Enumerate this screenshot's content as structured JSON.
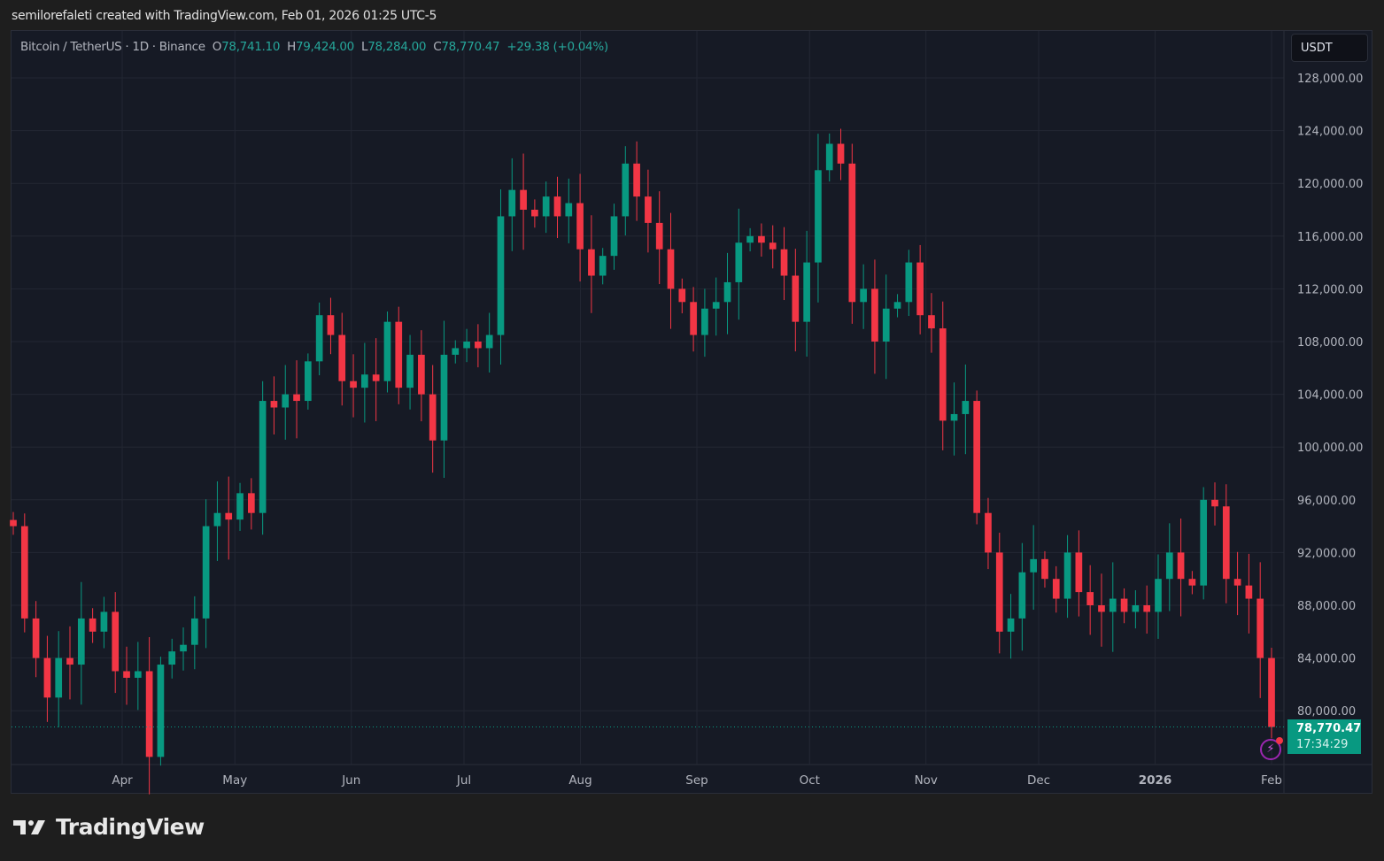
{
  "credit": "semilorefaleti created with TradingView.com, Feb 01, 2026 01:25 UTC-5",
  "legend": {
    "symbol": "Bitcoin / TetherUS · 1D · Binance",
    "o_label": "O",
    "o": "78,741.10",
    "h_label": "H",
    "h": "79,424.00",
    "l_label": "L",
    "l": "78,284.00",
    "c_label": "C",
    "c": "78,770.47",
    "change": "+29.38 (+0.04%)"
  },
  "currency": "USDT",
  "last_price": "78,770.47",
  "countdown": "17:34:29",
  "logo_text": "TradingView",
  "colors": {
    "up": "#089981",
    "down": "#f23645",
    "bg": "#161a25",
    "grid": "#232733"
  },
  "chart_data": {
    "type": "candlestick",
    "title": "Bitcoin / TetherUS · 1D · Binance",
    "x_start": "2025-03-03",
    "x_end": "2026-02-01",
    "sample_step_days": 3,
    "ylim": [
      76000,
      130000
    ],
    "y_ticks": [
      "128,000.00",
      "124,000.00",
      "120,000.00",
      "116,000.00",
      "112,000.00",
      "108,000.00",
      "104,000.00",
      "100,000.00",
      "96,000.00",
      "92,000.00",
      "88,000.00",
      "84,000.00",
      "80,000.00"
    ],
    "y_tick_values": [
      128000,
      124000,
      120000,
      116000,
      112000,
      108000,
      104000,
      100000,
      96000,
      92000,
      88000,
      84000,
      80000
    ],
    "x_ticks": [
      "Apr",
      "May",
      "Jun",
      "Jul",
      "Aug",
      "Sep",
      "Oct",
      "Nov",
      "Dec",
      "2026",
      "Feb"
    ],
    "x_tick_day_offsets": [
      29,
      59,
      90,
      120,
      151,
      182,
      212,
      243,
      273,
      304,
      335
    ],
    "closes": [
      94000,
      87000,
      84000,
      81000,
      84000,
      83500,
      87000,
      86000,
      87500,
      83000,
      82500,
      83000,
      76500,
      83500,
      84500,
      85000,
      87000,
      94000,
      95000,
      94500,
      96500,
      95000,
      103500,
      103000,
      104000,
      103500,
      106500,
      110000,
      108500,
      105000,
      104500,
      105500,
      105000,
      109500,
      104500,
      107000,
      104000,
      100500,
      107000,
      107500,
      108000,
      107500,
      108500,
      117500,
      119500,
      118000,
      117500,
      119000,
      117500,
      118500,
      115000,
      113000,
      114500,
      117500,
      121500,
      119000,
      117000,
      115000,
      112000,
      111000,
      108500,
      110500,
      111000,
      112500,
      115500,
      116000,
      115500,
      115000,
      113000,
      109500,
      114000,
      121000,
      123000,
      121500,
      111000,
      112000,
      108000,
      110500,
      111000,
      114000,
      110000,
      109000,
      102000,
      102500,
      103500,
      95000,
      92000,
      86000,
      87000,
      90500,
      91500,
      90000,
      88500,
      92000,
      89000,
      88000,
      87500,
      88500,
      87500,
      88000,
      87500,
      90000,
      92000,
      90000,
      89500,
      96000,
      95500,
      90000,
      89500,
      88500,
      84000,
      78770.47
    ]
  }
}
